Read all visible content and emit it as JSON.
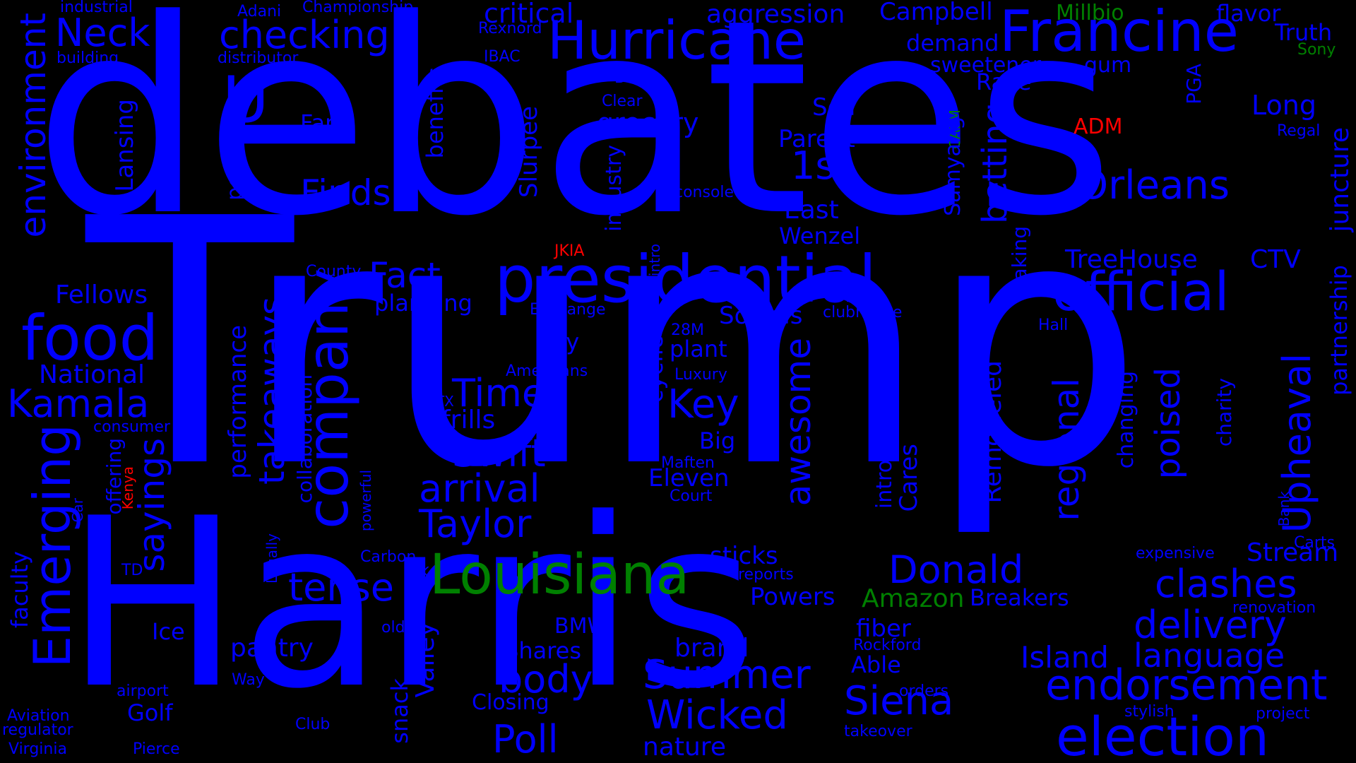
{
  "colors": {
    "background": "#000000",
    "blue": "#0000ff",
    "green": "#008000",
    "red": "#ff0000"
  },
  "words": {
    "debates": "debates",
    "trump": "Trump",
    "harris": "Harris",
    "presidential": "presidential",
    "hurricane": "Hurricane",
    "francine": "Francine",
    "louisiana": "Louisiana",
    "food": "food",
    "company": "company",
    "official": "official",
    "orleans": "Orleans",
    "emerging": "Emerging",
    "election": "election",
    "endorsement": "endorsement",
    "wicked": "Wicked",
    "siena": "Siena",
    "summer": "Summer",
    "poll": "Poll",
    "taylor": "Taylor",
    "swift": "Swift",
    "arrival": "arrival",
    "times": "Times",
    "key": "Key",
    "kamala": "Kamala",
    "checking": "checking",
    "neck": "Neck",
    "u": "U",
    "environment": "environment",
    "fact": "Fact",
    "finds": "Finds",
    "first": "1st",
    "delivery": "delivery",
    "clashes": "clashes",
    "donald": "Donald",
    "tense": "tense",
    "body": "body",
    "awesome": "awesome",
    "takeaways": "takeaways",
    "sayings": "sayings",
    "upheaval": "Upheaval",
    "regional": "regional",
    "language": "language",
    "island": "Island",
    "betting": "betting",
    "poised": "poised",
    "juncture": "juncture",
    "partnership": "partnership",
    "amazon": "Amazon",
    "millbio": "Millbio",
    "sony": "Sony",
    "calm": "CALM",
    "adm": "ADM",
    "jkia": "JKIA",
    "kenya": "Kenya",
    "aggression": "aggression",
    "critical": "critical",
    "campbell": "Campbell",
    "flavor": "flavor",
    "truth": "Truth",
    "demand": "demand",
    "sweetener": "sweetener",
    "gum": "gum",
    "race": "Race",
    "pga": "PGA",
    "long": "Long",
    "regal": "Regal",
    "sell": "Sell",
    "parent": "Parent",
    "grocery": "grocery",
    "farm": "Farm",
    "east": "East",
    "wenzel": "Wenzel",
    "samyang": "Samyang",
    "treehouse": "TreeHouse",
    "ctv": "CTV",
    "socials": "Socials",
    "clubhouse": "clubhouse",
    "baking": "baking",
    "industrial": "industrial",
    "building": "building",
    "adani": "Adani",
    "championship": "Championship",
    "rexnord": "Rexnord",
    "distributor": "distributor",
    "ibac": "IBAC",
    "bet": "Bet",
    "clear": "Clear",
    "benefits": "benefits",
    "slurpee": "Slurpee",
    "podcast": "podcast",
    "lansing": "Lansing",
    "credit": "credit",
    "console": "console",
    "industry": "industry",
    "intro": "intro",
    "county": "County",
    "fellows": "Fellows",
    "planning": "planning",
    "exchange": "Exchange",
    "national": "National",
    "soy": "soy",
    "plant": "plant",
    "twentyeightm": "28M",
    "luxury": "Luxury",
    "americans": "Americans",
    "consumer": "consumer",
    "ctx": "CTX",
    "frills": "frills",
    "big": "Big",
    "maften": "Maften",
    "eleven": "Eleven",
    "court": "Court",
    "cyclical": "cyclical",
    "hall": "Hall",
    "charity": "charity",
    "changing": "changing",
    "panattoni": "Panattoni",
    "bank": "Bank",
    "carts": "Carts",
    "stream": "Stream",
    "expensive": "expensive",
    "renovation": "renovation",
    "remodeled": "Remodeled",
    "cares": "Cares",
    "introducing": "introducing",
    "performance": "performance",
    "collaboration": "collaboration",
    "offering": "offering",
    "car": "Car",
    "faculty": "faculty",
    "powerful": "powerful",
    "legally": "Legally",
    "carbon": "Carbon",
    "uk": "UK",
    "td": "TD",
    "ice": "Ice",
    "pantry": "pantry",
    "sticks": "sticks",
    "reports": "reports",
    "powers": "Powers",
    "breakers": "Breakers",
    "bmw": "BMW",
    "fiber": "fiber",
    "brand": "brand",
    "rockford": "Rockford",
    "able": "Able",
    "old": "old",
    "shares": "Shares",
    "valley": "Valley",
    "snack": "snack",
    "closing": "Closing",
    "nature": "nature",
    "way": "Way",
    "airport": "airport",
    "golf": "Golf",
    "aviation": "Aviation",
    "regulator": "regulator",
    "virginia": "Virginia",
    "pierce": "Pierce",
    "club": "Club",
    "orders": "orders",
    "takeover": "takeover",
    "stylish": "stylish",
    "project": "project"
  }
}
